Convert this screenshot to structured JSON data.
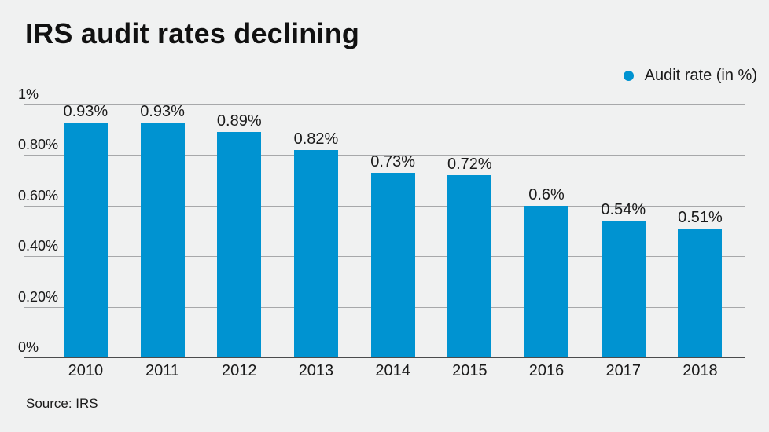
{
  "chart_data": {
    "type": "bar",
    "title": "IRS audit rates declining",
    "legend": {
      "label": "Audit rate (in %)",
      "position": "top-right"
    },
    "categories": [
      "2010",
      "2011",
      "2012",
      "2013",
      "2014",
      "2015",
      "2016",
      "2017",
      "2018"
    ],
    "values": [
      0.93,
      0.93,
      0.89,
      0.82,
      0.73,
      0.72,
      0.6,
      0.54,
      0.51
    ],
    "value_labels": [
      "0.93%",
      "0.93%",
      "0.89%",
      "0.82%",
      "0.73%",
      "0.72%",
      "0.6%",
      "0.54%",
      "0.51%"
    ],
    "ylabel": "",
    "xlabel": "",
    "ylim": [
      0,
      1
    ],
    "grid": true,
    "yticks": [
      {
        "value": 1,
        "label": "1%"
      },
      {
        "value": 0.8,
        "label": "0.80%"
      },
      {
        "value": 0.6,
        "label": "0.60%"
      },
      {
        "value": 0.4,
        "label": "0.40%"
      },
      {
        "value": 0.2,
        "label": "0.20%"
      },
      {
        "value": 0,
        "label": "0%"
      }
    ],
    "source": "Source: IRS",
    "colors": {
      "bar": "#0093d1",
      "background": "#f0f1f1",
      "gridline": "#a7a8aa",
      "axis_line": "#4a4b4c",
      "text": "#1a1a1a",
      "title_text": "#111111"
    }
  }
}
